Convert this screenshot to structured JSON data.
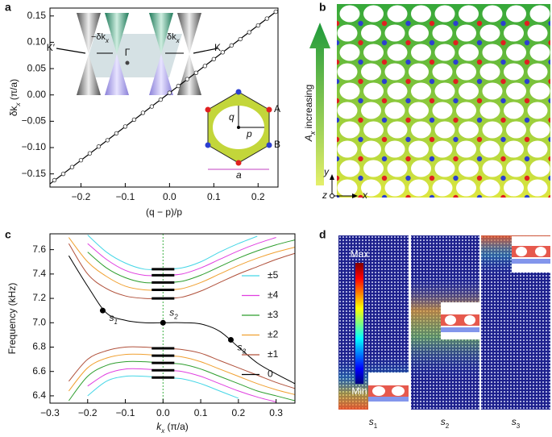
{
  "panel_labels": [
    "a",
    "b",
    "c",
    "d"
  ],
  "chart_data": [
    {
      "type": "scatter",
      "xlabel": "(q − p)/p",
      "ylabel": {
        "text": "δk",
        "sub": "x",
        "rest": " (π/a)"
      },
      "x": [
        -0.26,
        -0.24,
        -0.22,
        -0.2,
        -0.18,
        -0.16,
        -0.14,
        -0.12,
        -0.1,
        -0.08,
        -0.06,
        -0.04,
        -0.02,
        0,
        0.02,
        0.04,
        0.06,
        0.08,
        0.1,
        0.12,
        0.14,
        0.16,
        0.18,
        0.2,
        0.22,
        0.24
      ],
      "values": [
        -0.162,
        -0.15,
        -0.137,
        -0.124,
        -0.111,
        -0.098,
        -0.086,
        -0.073,
        -0.06,
        -0.047,
        -0.034,
        -0.022,
        -0.009,
        0.004,
        0.017,
        0.03,
        0.042,
        0.055,
        0.068,
        0.081,
        0.094,
        0.106,
        0.119,
        0.132,
        0.145,
        0.158
      ],
      "color": "#333333",
      "fit": {
        "x": [
          -0.27,
          0.245
        ],
        "values": [
          -0.169,
          0.161
        ],
        "color": "#000000"
      },
      "xlim": [
        -0.27,
        0.245
      ],
      "ylim": [
        -0.175,
        0.165
      ],
      "xticks": [
        {
          "value": -0.2,
          "label": "−0.2"
        },
        {
          "value": -0.1,
          "label": "−0.1"
        },
        {
          "value": 0,
          "label": "0.0"
        },
        0.1,
        0.2
      ],
      "yticks": [
        {
          "value": -0.15,
          "label": "−0.15"
        },
        {
          "value": -0.1,
          "label": "−0.10"
        },
        {
          "value": -0.05,
          "label": "−0.05"
        },
        {
          "value": 0,
          "label": "0.00"
        },
        0.05,
        {
          "value": 0.1,
          "label": "0.10"
        },
        0.15
      ],
      "inset": {
        "kprime": "K′",
        "gamma": "Γ",
        "k": "K",
        "minus_dk": {
          "text": "−δk",
          "sub": "x"
        },
        "dk": {
          "text": "δk",
          "sub": "x"
        },
        "q": "q",
        "p": "p",
        "A": "A",
        "B": "B",
        "a": "a"
      }
    },
    {
      "type": "line",
      "ylabel": "Frequency (kHz)",
      "xlabel": {
        "text": "k",
        "sub": "x",
        "rest": " (π/a)"
      },
      "x": [
        -0.3,
        -0.25,
        -0.2,
        -0.15,
        -0.1,
        -0.05,
        0,
        0.05,
        0.1,
        0.15,
        0.2,
        0.25,
        0.3,
        0.35
      ],
      "series": [
        {
          "name": "±5",
          "color": "#45d6e6",
          "values": [
            null,
            null,
            7.72,
            7.58,
            7.49,
            7.44,
            7.44,
            7.45,
            7.5,
            7.58,
            7.65,
            7.71,
            null,
            null
          ]
        },
        {
          "name": "±4",
          "color": "#e03fe0",
          "values": [
            null,
            null,
            7.65,
            7.52,
            7.43,
            7.39,
            7.39,
            7.4,
            7.45,
            7.52,
            7.59,
            7.65,
            7.7,
            null
          ]
        },
        {
          "name": "±3",
          "color": "#2e9e2e",
          "values": [
            null,
            null,
            7.58,
            7.45,
            7.37,
            7.33,
            7.33,
            7.34,
            7.39,
            7.46,
            7.53,
            7.59,
            7.64,
            7.68
          ]
        },
        {
          "name": "±2",
          "color": "#f0a030",
          "values": [
            null,
            7.7,
            7.5,
            7.38,
            7.3,
            7.27,
            7.27,
            7.28,
            7.33,
            7.4,
            7.47,
            7.53,
            7.58,
            7.62
          ]
        },
        {
          "name": "±1",
          "color": "#b0503a",
          "values": [
            null,
            7.65,
            7.4,
            7.28,
            7.22,
            7.2,
            7.2,
            7.21,
            7.26,
            7.33,
            7.4,
            7.46,
            7.52,
            7.57
          ]
        },
        {
          "name": "0",
          "color": "#000000",
          "values": [
            null,
            7.55,
            7.3,
            7.08,
            7.02,
            7.0,
            7.0,
            7.0,
            6.99,
            6.93,
            6.8,
            6.67,
            6.58,
            6.5
          ]
        },
        {
          "color": "#b0503a",
          "values": [
            null,
            6.52,
            6.7,
            6.77,
            6.8,
            6.8,
            6.79,
            6.78,
            6.75,
            6.69,
            6.63,
            6.57,
            6.51,
            6.46
          ]
        },
        {
          "color": "#f0a030",
          "values": [
            null,
            6.44,
            6.63,
            6.71,
            6.74,
            6.74,
            6.73,
            6.72,
            6.68,
            6.62,
            6.56,
            6.5,
            6.45,
            6.41
          ]
        },
        {
          "color": "#2e9e2e",
          "values": [
            null,
            6.36,
            6.56,
            6.65,
            6.68,
            6.68,
            6.67,
            6.66,
            6.62,
            6.56,
            6.5,
            6.44,
            6.4,
            6.36
          ]
        },
        {
          "color": "#e03fe0",
          "values": [
            null,
            null,
            6.48,
            6.58,
            6.62,
            6.62,
            6.61,
            6.6,
            6.56,
            6.5,
            6.44,
            6.39,
            6.35,
            null
          ]
        },
        {
          "color": "#45d6e6",
          "values": [
            null,
            null,
            6.4,
            6.52,
            6.56,
            6.56,
            6.55,
            6.54,
            6.5,
            6.44,
            6.38,
            null,
            null,
            null
          ]
        }
      ],
      "level_x": [
        -0.03,
        0.03
      ],
      "levels": [
        7.44,
        7.39,
        7.33,
        7.27,
        7.2,
        6.79,
        6.73,
        6.67,
        6.61,
        6.55
      ],
      "marker_line": 0,
      "points": [
        {
          "text": "s",
          "sub": "1",
          "x": -0.16,
          "y": 7.1
        },
        {
          "text": "s",
          "sub": "2",
          "x": 0,
          "y": 7.0
        },
        {
          "text": "s",
          "sub": "3",
          "x": 0.18,
          "y": 6.86
        }
      ],
      "xlim": [
        -0.3,
        0.35
      ],
      "ylim": [
        6.34,
        7.73
      ],
      "xticks": [
        {
          "value": -0.3,
          "label": "−0.3"
        },
        {
          "value": -0.2,
          "label": "−0.2"
        },
        {
          "value": -0.1,
          "label": "−0.1"
        },
        {
          "value": 0,
          "label": "0.0"
        },
        0.1,
        0.2,
        0.3
      ],
      "yticks": [
        6.4,
        6.6,
        6.8,
        {
          "value": 7,
          "label": "7.0"
        },
        7.2,
        7.4,
        7.6
      ],
      "legend": "right"
    }
  ],
  "panel_b": {
    "arrow_label": {
      "text": "A",
      "sub": "x",
      "rest": " increasing"
    },
    "axis_y": "y",
    "axis_z": "z",
    "axis_x": "x"
  },
  "panel_d": {
    "max": "Max",
    "min": "Min",
    "labels": [
      {
        "text": "s",
        "sub": "1"
      },
      {
        "text": "s",
        "sub": "2"
      },
      {
        "text": "s",
        "sub": "3"
      }
    ]
  }
}
